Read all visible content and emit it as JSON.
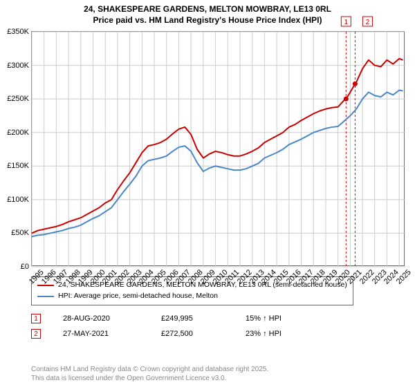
{
  "title_line1": "24, SHAKESPEARE GARDENS, MELTON MOWBRAY, LE13 0RL",
  "title_line2": "Price paid vs. HM Land Registry's House Price Index (HPI)",
  "chart": {
    "type": "line",
    "background_color": "#ffffff",
    "border_color": "#666666",
    "grid_color": "#cccccc",
    "title_fontsize": 12,
    "label_fontsize": 11,
    "x": {
      "min": 1995,
      "max": 2025.5,
      "ticks": [
        1995,
        1996,
        1997,
        1998,
        1999,
        2000,
        2001,
        2002,
        2003,
        2004,
        2005,
        2006,
        2007,
        2008,
        2009,
        2010,
        2011,
        2012,
        2013,
        2014,
        2015,
        2016,
        2017,
        2018,
        2019,
        2020,
        2021,
        2022,
        2023,
        2024,
        2025
      ]
    },
    "y": {
      "min": 0,
      "max": 350000,
      "unit": "£",
      "ticks": [
        0,
        50000,
        100000,
        150000,
        200000,
        250000,
        300000,
        350000
      ],
      "labels": [
        "£0",
        "£50K",
        "£100K",
        "£150K",
        "£200K",
        "£250K",
        "£300K",
        "£350K"
      ]
    },
    "series": [
      {
        "name": "24, SHAKESPEARE GARDENS, MELTON MOWBRAY, LE13 0RL (semi-detached house)",
        "color": "#cc0000",
        "width": 2,
        "points": [
          [
            1995,
            50000
          ],
          [
            1995.5,
            54000
          ],
          [
            1996,
            56000
          ],
          [
            1996.5,
            58000
          ],
          [
            1997,
            60000
          ],
          [
            1997.5,
            63000
          ],
          [
            1998,
            67000
          ],
          [
            1998.5,
            70000
          ],
          [
            1999,
            73000
          ],
          [
            1999.5,
            78000
          ],
          [
            2000,
            83000
          ],
          [
            2000.5,
            88000
          ],
          [
            2001,
            95000
          ],
          [
            2001.5,
            100000
          ],
          [
            2002,
            115000
          ],
          [
            2002.5,
            128000
          ],
          [
            2003,
            140000
          ],
          [
            2003.5,
            155000
          ],
          [
            2004,
            170000
          ],
          [
            2004.5,
            180000
          ],
          [
            2005,
            182000
          ],
          [
            2005.5,
            185000
          ],
          [
            2006,
            190000
          ],
          [
            2006.5,
            198000
          ],
          [
            2007,
            205000
          ],
          [
            2007.5,
            208000
          ],
          [
            2008,
            197000
          ],
          [
            2008.5,
            175000
          ],
          [
            2009,
            162000
          ],
          [
            2009.5,
            168000
          ],
          [
            2010,
            172000
          ],
          [
            2010.5,
            170000
          ],
          [
            2011,
            167000
          ],
          [
            2011.5,
            165000
          ],
          [
            2012,
            165000
          ],
          [
            2012.5,
            168000
          ],
          [
            2013,
            172000
          ],
          [
            2013.5,
            177000
          ],
          [
            2014,
            185000
          ],
          [
            2014.5,
            190000
          ],
          [
            2015,
            195000
          ],
          [
            2015.5,
            200000
          ],
          [
            2016,
            208000
          ],
          [
            2016.5,
            212000
          ],
          [
            2017,
            218000
          ],
          [
            2017.5,
            223000
          ],
          [
            2018,
            228000
          ],
          [
            2018.5,
            232000
          ],
          [
            2019,
            235000
          ],
          [
            2019.5,
            237000
          ],
          [
            2020,
            238000
          ],
          [
            2020.5,
            248000
          ],
          [
            2020.66,
            249995
          ],
          [
            2021,
            260000
          ],
          [
            2021.4,
            272500
          ],
          [
            2021.5,
            275000
          ],
          [
            2022,
            295000
          ],
          [
            2022.5,
            308000
          ],
          [
            2023,
            300000
          ],
          [
            2023.5,
            298000
          ],
          [
            2024,
            308000
          ],
          [
            2024.5,
            302000
          ],
          [
            2025,
            310000
          ],
          [
            2025.3,
            308000
          ]
        ]
      },
      {
        "name": "HPI: Average price, semi-detached house, Melton",
        "color": "#4a86c8",
        "width": 2,
        "points": [
          [
            1995,
            45000
          ],
          [
            1995.5,
            47000
          ],
          [
            1996,
            48000
          ],
          [
            1996.5,
            50000
          ],
          [
            1997,
            52000
          ],
          [
            1997.5,
            54000
          ],
          [
            1998,
            57000
          ],
          [
            1998.5,
            59000
          ],
          [
            1999,
            62000
          ],
          [
            1999.5,
            67000
          ],
          [
            2000,
            72000
          ],
          [
            2000.5,
            76000
          ],
          [
            2001,
            82000
          ],
          [
            2001.5,
            88000
          ],
          [
            2002,
            100000
          ],
          [
            2002.5,
            112000
          ],
          [
            2003,
            123000
          ],
          [
            2003.5,
            135000
          ],
          [
            2004,
            150000
          ],
          [
            2004.5,
            158000
          ],
          [
            2005,
            160000
          ],
          [
            2005.5,
            162000
          ],
          [
            2006,
            165000
          ],
          [
            2006.5,
            172000
          ],
          [
            2007,
            178000
          ],
          [
            2007.5,
            180000
          ],
          [
            2008,
            172000
          ],
          [
            2008.5,
            155000
          ],
          [
            2009,
            142000
          ],
          [
            2009.5,
            147000
          ],
          [
            2010,
            150000
          ],
          [
            2010.5,
            148000
          ],
          [
            2011,
            146000
          ],
          [
            2011.5,
            144000
          ],
          [
            2012,
            144000
          ],
          [
            2012.5,
            146000
          ],
          [
            2013,
            150000
          ],
          [
            2013.5,
            154000
          ],
          [
            2014,
            162000
          ],
          [
            2014.5,
            166000
          ],
          [
            2015,
            170000
          ],
          [
            2015.5,
            175000
          ],
          [
            2016,
            182000
          ],
          [
            2016.5,
            186000
          ],
          [
            2017,
            190000
          ],
          [
            2017.5,
            195000
          ],
          [
            2018,
            200000
          ],
          [
            2018.5,
            203000
          ],
          [
            2019,
            206000
          ],
          [
            2019.5,
            208000
          ],
          [
            2020,
            209000
          ],
          [
            2020.5,
            217000
          ],
          [
            2021,
            225000
          ],
          [
            2021.5,
            235000
          ],
          [
            2022,
            250000
          ],
          [
            2022.5,
            260000
          ],
          [
            2023,
            255000
          ],
          [
            2023.5,
            253000
          ],
          [
            2024,
            260000
          ],
          [
            2024.5,
            256000
          ],
          [
            2025,
            263000
          ],
          [
            2025.3,
            262000
          ]
        ]
      }
    ],
    "event_markers": [
      {
        "num": "1",
        "x": 2020.66,
        "y": 249995,
        "color": "#cc0000"
      },
      {
        "num": "2",
        "x": 2021.4,
        "y": 272500,
        "color": "#cc0000"
      }
    ],
    "reference_lines": [
      {
        "x": 2020.66,
        "color": "#cc0000",
        "dash": "3,3",
        "width": 1
      },
      {
        "x": 2021.4,
        "color": "#cc0000",
        "dash": "3,3",
        "width": 1
      }
    ]
  },
  "legend": {
    "items": [
      {
        "color": "#cc0000",
        "label": "24, SHAKESPEARE GARDENS, MELTON MOWBRAY, LE13 0RL (semi-detached house)"
      },
      {
        "color": "#4a86c8",
        "label": "HPI: Average price, semi-detached house, Melton"
      }
    ]
  },
  "events": [
    {
      "num": "1",
      "date": "28-AUG-2020",
      "price": "£249,995",
      "pct": "15% ↑ HPI",
      "color": "#cc0000"
    },
    {
      "num": "2",
      "date": "27-MAY-2021",
      "price": "£272,500",
      "pct": "23% ↑ HPI",
      "color": "#cc0000"
    }
  ],
  "footer": {
    "line1": "Contains HM Land Registry data © Crown copyright and database right 2025.",
    "line2": "This data is licensed under the Open Government Licence v3.0."
  }
}
